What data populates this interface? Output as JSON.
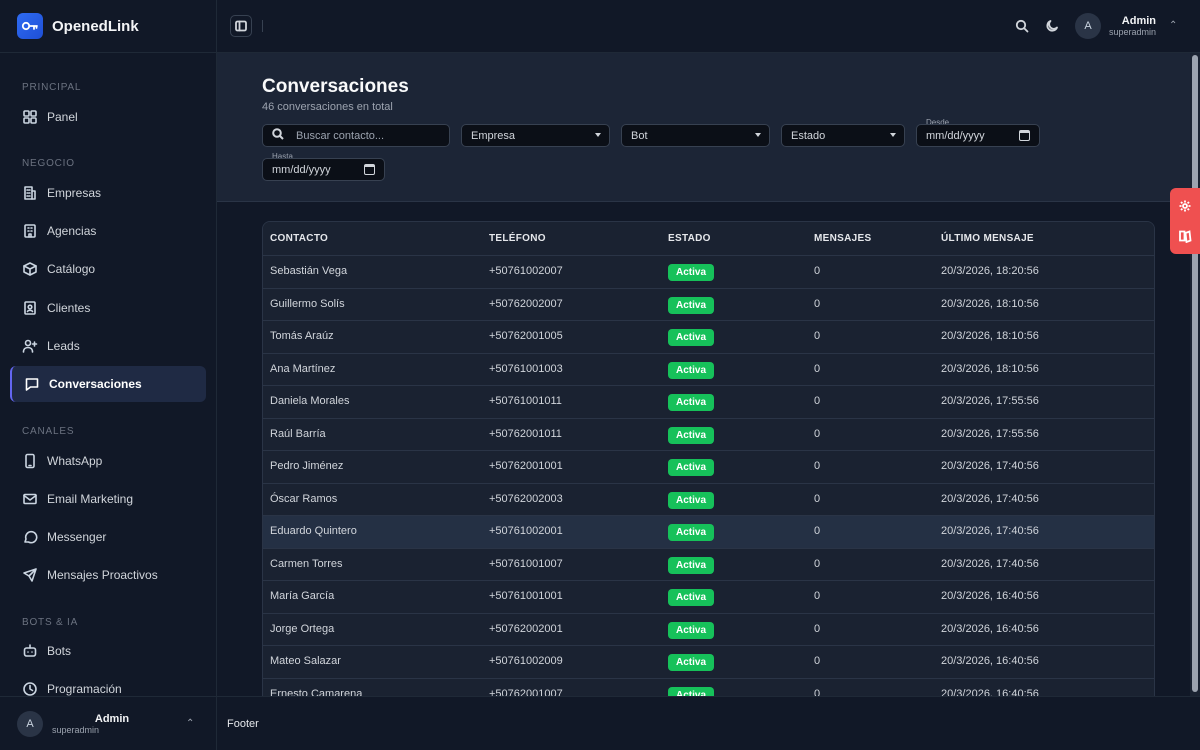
{
  "brand": {
    "name": "OpenedLink"
  },
  "sidebar": {
    "sections": [
      {
        "label": "PRINCIPAL"
      },
      {
        "label": "NEGOCIO"
      },
      {
        "label": "CANALES"
      },
      {
        "label": "BOTS & IA"
      }
    ],
    "items": [
      {
        "label": "Panel",
        "icon": "grid-icon"
      },
      {
        "label": "Empresas",
        "icon": "building-icon"
      },
      {
        "label": "Agencias",
        "icon": "office-icon"
      },
      {
        "label": "Catálogo",
        "icon": "box-icon"
      },
      {
        "label": "Clientes",
        "icon": "id-card-icon"
      },
      {
        "label": "Leads",
        "icon": "user-plus-icon"
      },
      {
        "label": "Conversaciones",
        "icon": "chat-icon",
        "active": true
      },
      {
        "label": "WhatsApp",
        "icon": "phone-icon"
      },
      {
        "label": "Email Marketing",
        "icon": "mail-icon"
      },
      {
        "label": "Messenger",
        "icon": "message-circle-icon"
      },
      {
        "label": "Mensajes Proactivos",
        "icon": "send-icon"
      },
      {
        "label": "Bots",
        "icon": "bot-icon"
      },
      {
        "label": "Programación",
        "icon": "clock-icon"
      }
    ],
    "user": {
      "initial": "A",
      "name": "Admin",
      "role": "superadmin"
    }
  },
  "topbar": {
    "user": {
      "initial": "A",
      "name": "Admin",
      "role": "superadmin"
    }
  },
  "page": {
    "title": "Conversaciones",
    "subtitle": "46 conversaciones en total"
  },
  "filters": {
    "search_placeholder": "Buscar contacto...",
    "empresa": "Empresa",
    "bot": "Bot",
    "estado": "Estado",
    "desde_label": "Desde",
    "desde_value": "mm/dd/yyyy",
    "hasta_label": "Hasta",
    "hasta_value": "mm/dd/yyyy"
  },
  "table": {
    "columns": [
      "CONTACTO",
      "TELÉFONO",
      "ESTADO",
      "MENSAJES",
      "ÚLTIMO MENSAJE"
    ],
    "rows": [
      {
        "contacto": "Sebastián Vega",
        "telefono": "+50761002007",
        "estado": "Activa",
        "mensajes": "0",
        "ultimo": "20/3/2026, 18:20:56"
      },
      {
        "contacto": "Guillermo Solís",
        "telefono": "+50762002007",
        "estado": "Activa",
        "mensajes": "0",
        "ultimo": "20/3/2026, 18:10:56"
      },
      {
        "contacto": "Tomás Araúz",
        "telefono": "+50762001005",
        "estado": "Activa",
        "mensajes": "0",
        "ultimo": "20/3/2026, 18:10:56"
      },
      {
        "contacto": "Ana Martínez",
        "telefono": "+50761001003",
        "estado": "Activa",
        "mensajes": "0",
        "ultimo": "20/3/2026, 18:10:56"
      },
      {
        "contacto": "Daniela Morales",
        "telefono": "+50761001011",
        "estado": "Activa",
        "mensajes": "0",
        "ultimo": "20/3/2026, 17:55:56"
      },
      {
        "contacto": "Raúl Barría",
        "telefono": "+50762001011",
        "estado": "Activa",
        "mensajes": "0",
        "ultimo": "20/3/2026, 17:55:56"
      },
      {
        "contacto": "Pedro Jiménez",
        "telefono": "+50762001001",
        "estado": "Activa",
        "mensajes": "0",
        "ultimo": "20/3/2026, 17:40:56"
      },
      {
        "contacto": "Óscar Ramos",
        "telefono": "+50762002003",
        "estado": "Activa",
        "mensajes": "0",
        "ultimo": "20/3/2026, 17:40:56"
      },
      {
        "contacto": "Eduardo Quintero",
        "telefono": "+50761002001",
        "estado": "Activa",
        "mensajes": "0",
        "ultimo": "20/3/2026, 17:40:56",
        "highlight": true
      },
      {
        "contacto": "Carmen Torres",
        "telefono": "+50761001007",
        "estado": "Activa",
        "mensajes": "0",
        "ultimo": "20/3/2026, 17:40:56"
      },
      {
        "contacto": "María García",
        "telefono": "+50761001001",
        "estado": "Activa",
        "mensajes": "0",
        "ultimo": "20/3/2026, 16:40:56"
      },
      {
        "contacto": "Jorge Ortega",
        "telefono": "+50762002001",
        "estado": "Activa",
        "mensajes": "0",
        "ultimo": "20/3/2026, 16:40:56"
      },
      {
        "contacto": "Mateo Salazar",
        "telefono": "+50761002009",
        "estado": "Activa",
        "mensajes": "0",
        "ultimo": "20/3/2026, 16:40:56"
      },
      {
        "contacto": "Ernesto Camarena",
        "telefono": "+50762001007",
        "estado": "Activa",
        "mensajes": "0",
        "ultimo": "20/3/2026, 16:40:56"
      }
    ]
  },
  "footer": {
    "text": "Footer"
  },
  "colors": {
    "accent": "#6366f1",
    "status_active": "#16c15a",
    "float_tab": "#ef5050",
    "brand": "#2f6bf2"
  }
}
